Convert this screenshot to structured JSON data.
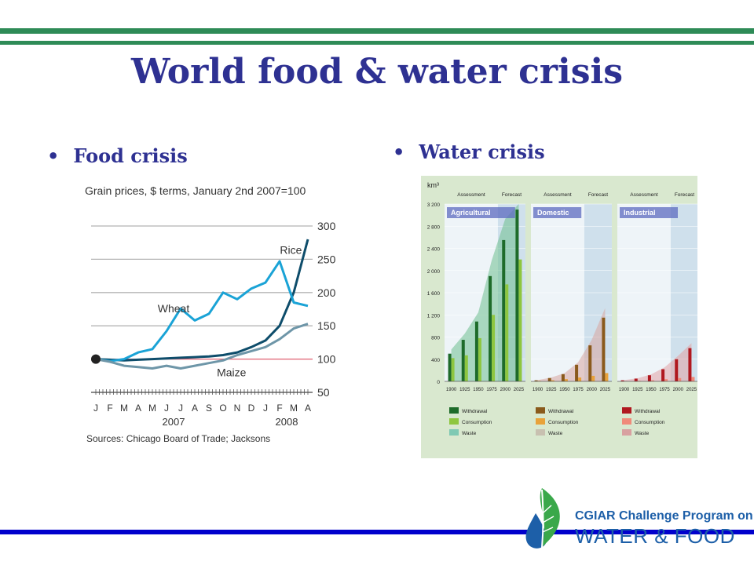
{
  "slide": {
    "title": "World food & water crisis",
    "bullets": [
      {
        "label": "Food crisis"
      },
      {
        "label": "Water crisis"
      }
    ],
    "colors": {
      "title": "#2e3192",
      "rule_green": "#2e8b57",
      "rule_blue": "#0000cc"
    }
  },
  "chart_data": [
    {
      "type": "line",
      "title": "Grain prices, $ terms, January 2nd 2007=100",
      "source": "Sources: Chicago Board of Trade; Jacksons",
      "x_tick_labels": [
        "J",
        "F",
        "M",
        "A",
        "M",
        "J",
        "J",
        "A",
        "S",
        "O",
        "N",
        "D",
        "J",
        "F",
        "M",
        "A"
      ],
      "year_labels": [
        "2007",
        "2008"
      ],
      "x_month_index": [
        0,
        1,
        2,
        3,
        4,
        5,
        6,
        7,
        8,
        9,
        10,
        11,
        12,
        13,
        14,
        15
      ],
      "ylim": [
        50,
        300
      ],
      "yticks": [
        50,
        100,
        150,
        200,
        250,
        300
      ],
      "reference_line": 100,
      "series": [
        {
          "name": "Rice",
          "color": "#0e4d6b",
          "values": [
            100,
            99,
            98,
            99,
            100,
            101,
            102,
            103,
            104,
            106,
            110,
            118,
            128,
            150,
            200,
            280
          ]
        },
        {
          "name": "Wheat",
          "color": "#1aa3d6",
          "values": [
            100,
            97,
            100,
            110,
            115,
            142,
            176,
            158,
            168,
            200,
            190,
            206,
            215,
            247,
            185,
            180
          ]
        },
        {
          "name": "Maize",
          "color": "#6e96a8",
          "values": [
            100,
            96,
            90,
            88,
            86,
            90,
            86,
            90,
            94,
            98,
            106,
            112,
            118,
            130,
            146,
            153
          ]
        }
      ]
    },
    {
      "type": "bar",
      "ylabel": "km³",
      "ylim": [
        0,
        3200
      ],
      "yticks": [
        0,
        400,
        800,
        1200,
        1600,
        2000,
        2400,
        2800,
        3200
      ],
      "ytick_labels": [
        "0",
        "400",
        "800",
        "1 200",
        "1 600",
        "2 000",
        "2 400",
        "2 800",
        "3 200"
      ],
      "categories": [
        "1900",
        "1925",
        "1950",
        "1975",
        "2000",
        "2025"
      ],
      "period_labels": {
        "assessment": "Assessment",
        "forecast": "Forecast"
      },
      "panels": [
        {
          "name": "Agricultural",
          "withdrawal": [
            500,
            750,
            1080,
            1900,
            2550,
            3100
          ],
          "consumption": [
            420,
            470,
            780,
            1200,
            1750,
            2200
          ],
          "colors": {
            "withdrawal": "#1e6b2a",
            "consumption": "#8ec63f",
            "waste": "#7fc9b3",
            "area": "#6fbf8f"
          },
          "legend": [
            "Withdrawal",
            "Consumption",
            "Waste"
          ]
        },
        {
          "name": "Domestic",
          "withdrawal": [
            20,
            60,
            130,
            300,
            650,
            1150
          ],
          "consumption": [
            10,
            20,
            40,
            70,
            100,
            150
          ],
          "colors": {
            "withdrawal": "#8a5a1c",
            "consumption": "#e8a23a",
            "waste": "#c8c0b0",
            "area": "#d9a5a0"
          },
          "legend": [
            "Withdrawal",
            "Consumption",
            "Waste"
          ]
        },
        {
          "name": "Industrial",
          "withdrawal": [
            20,
            50,
            110,
            220,
            400,
            600
          ],
          "consumption": [
            5,
            10,
            20,
            40,
            60,
            80
          ],
          "colors": {
            "withdrawal": "#b0181f",
            "consumption": "#f08a7a",
            "waste": "#d8a0a0",
            "area": "#e2a3a6"
          },
          "legend": [
            "Withdrawal",
            "Consumption",
            "Waste"
          ]
        }
      ]
    }
  ],
  "logo": {
    "line1": "CGIAR Challenge Program on",
    "line2": "WATER & FOOD",
    "icon": "water-drop-leaf-icon"
  }
}
